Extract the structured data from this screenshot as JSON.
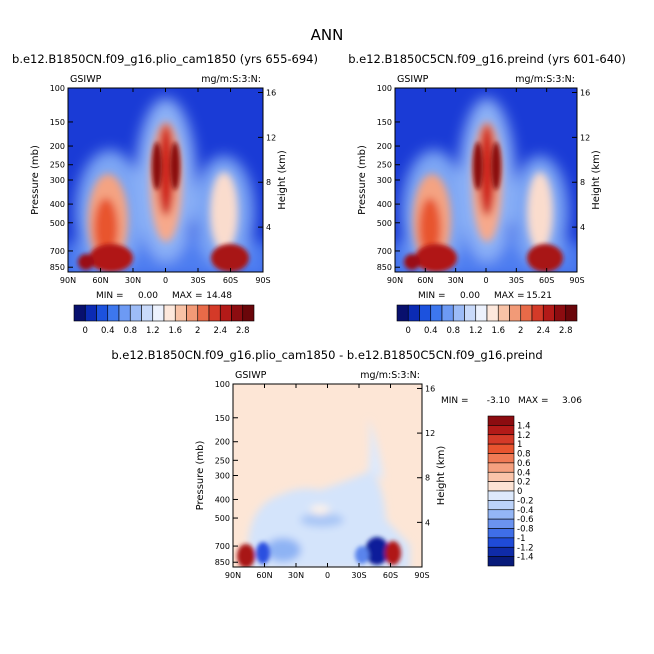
{
  "figure": {
    "title": "ANN"
  },
  "chart_data": [
    {
      "type": "heatmap",
      "title": "b.e12.B1850CN.f09_g16.plio_cam1850 (yrs 655-694)",
      "left_label": "GSIWP",
      "right_label": "mg/m:S:3:N:",
      "xlabel": "",
      "ylabel": "Pressure (mb)",
      "y2label": "Height (km)",
      "x_ticks": [
        "90N",
        "60N",
        "30N",
        "0",
        "30S",
        "60S",
        "90S"
      ],
      "y_ticks": [
        100,
        150,
        200,
        250,
        300,
        400,
        500,
        700,
        850
      ],
      "y_tick_labels": [
        "100",
        "150",
        "200",
        "250",
        "300",
        "400",
        "500",
        "700",
        "850"
      ],
      "y2_ticks": [
        16,
        12,
        8,
        4
      ],
      "y2_tick_labels": [
        "16",
        "12",
        "8",
        "4"
      ],
      "ylim": [
        100,
        900
      ],
      "min_label": "MIN =",
      "min_value": "0.00",
      "max_label": "MAX =",
      "max_value": "14.48",
      "max": 14.48,
      "colorbar": [
        "0",
        "0.4",
        "0.8",
        "1.2",
        "1.6",
        "2",
        "2.4",
        "2.8"
      ]
    },
    {
      "type": "heatmap",
      "title": "b.e12.B1850C5CN.f09_g16.preind (yrs 601-640)",
      "left_label": "GSIWP",
      "right_label": "mg/m:S:3:N:",
      "xlabel": "",
      "ylabel": "Pressure (mb)",
      "y2label": "Height (km)",
      "x_ticks": [
        "90N",
        "60N",
        "30N",
        "0",
        "30S",
        "60S",
        "90S"
      ],
      "y_ticks": [
        100,
        150,
        200,
        250,
        300,
        400,
        500,
        700,
        850
      ],
      "y_tick_labels": [
        "100",
        "150",
        "200",
        "250",
        "300",
        "400",
        "500",
        "700",
        "850"
      ],
      "y2_ticks": [
        16,
        12,
        8,
        4
      ],
      "y2_tick_labels": [
        "16",
        "12",
        "8",
        "4"
      ],
      "ylim": [
        100,
        900
      ],
      "min_label": "MIN =",
      "min_value": "0.00",
      "max_label": "MAX =",
      "max_value": "15.21",
      "max": 15.21,
      "colorbar": [
        "0",
        "0.4",
        "0.8",
        "1.2",
        "1.6",
        "2",
        "2.4",
        "2.8"
      ]
    },
    {
      "type": "heatmap",
      "title": "b.e12.B1850CN.f09_g16.plio_cam1850 - b.e12.B1850C5CN.f09_g16.preind",
      "left_label": "GSIWP",
      "right_label": "mg/m:S:3:N:",
      "xlabel": "",
      "ylabel": "Pressure (mb)",
      "y2label": "Height (km)",
      "x_ticks": [
        "90N",
        "60N",
        "30N",
        "0",
        "30S",
        "60S",
        "90S"
      ],
      "y_ticks": [
        100,
        150,
        200,
        250,
        300,
        400,
        500,
        700,
        850
      ],
      "y_tick_labels": [
        "100",
        "150",
        "200",
        "250",
        "300",
        "400",
        "500",
        "700",
        "850"
      ],
      "y2_ticks": [
        16,
        12,
        8,
        4
      ],
      "y2_tick_labels": [
        "16",
        "12",
        "8",
        "4"
      ],
      "ylim": [
        100,
        900
      ],
      "min_label": "MIN =",
      "min_value": "-3.10",
      "max_label": "MAX =",
      "max_value": "3.06",
      "min": -3.1,
      "max": 3.06,
      "colorbar": [
        "1.4",
        "1.2",
        "1",
        "0.8",
        "0.6",
        "0.4",
        "0.2",
        "0",
        "-0.2",
        "-0.4",
        "-0.6",
        "-0.8",
        "-1",
        "-1.2",
        "-1.4"
      ]
    }
  ]
}
